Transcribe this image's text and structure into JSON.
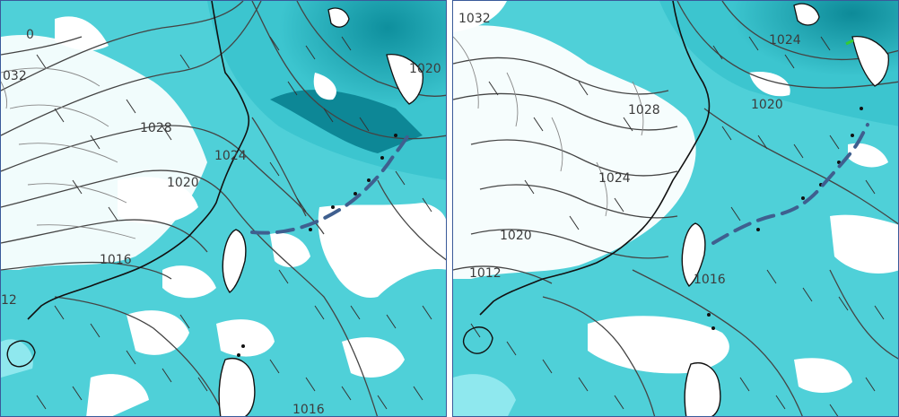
{
  "colors": {
    "moist_dark": "#1aa7b3",
    "moist_mid": "#4fd0d8",
    "moist_light": "#8fe8ee",
    "dry": "#ffffff",
    "coast": "#111111",
    "isobar": "#444444",
    "front": "#3f5f8f",
    "border": "#3a5a9a"
  },
  "panels": [
    {
      "name": "left",
      "isobar_labels": [
        "032",
        "0",
        "1028",
        "1024",
        "1020",
        "1020",
        "1016",
        "12",
        "1016"
      ]
    },
    {
      "name": "right",
      "isobar_labels": [
        "1032",
        "1024",
        "1028",
        "1020",
        "1024",
        "1020",
        "1012",
        "1016"
      ]
    }
  ]
}
